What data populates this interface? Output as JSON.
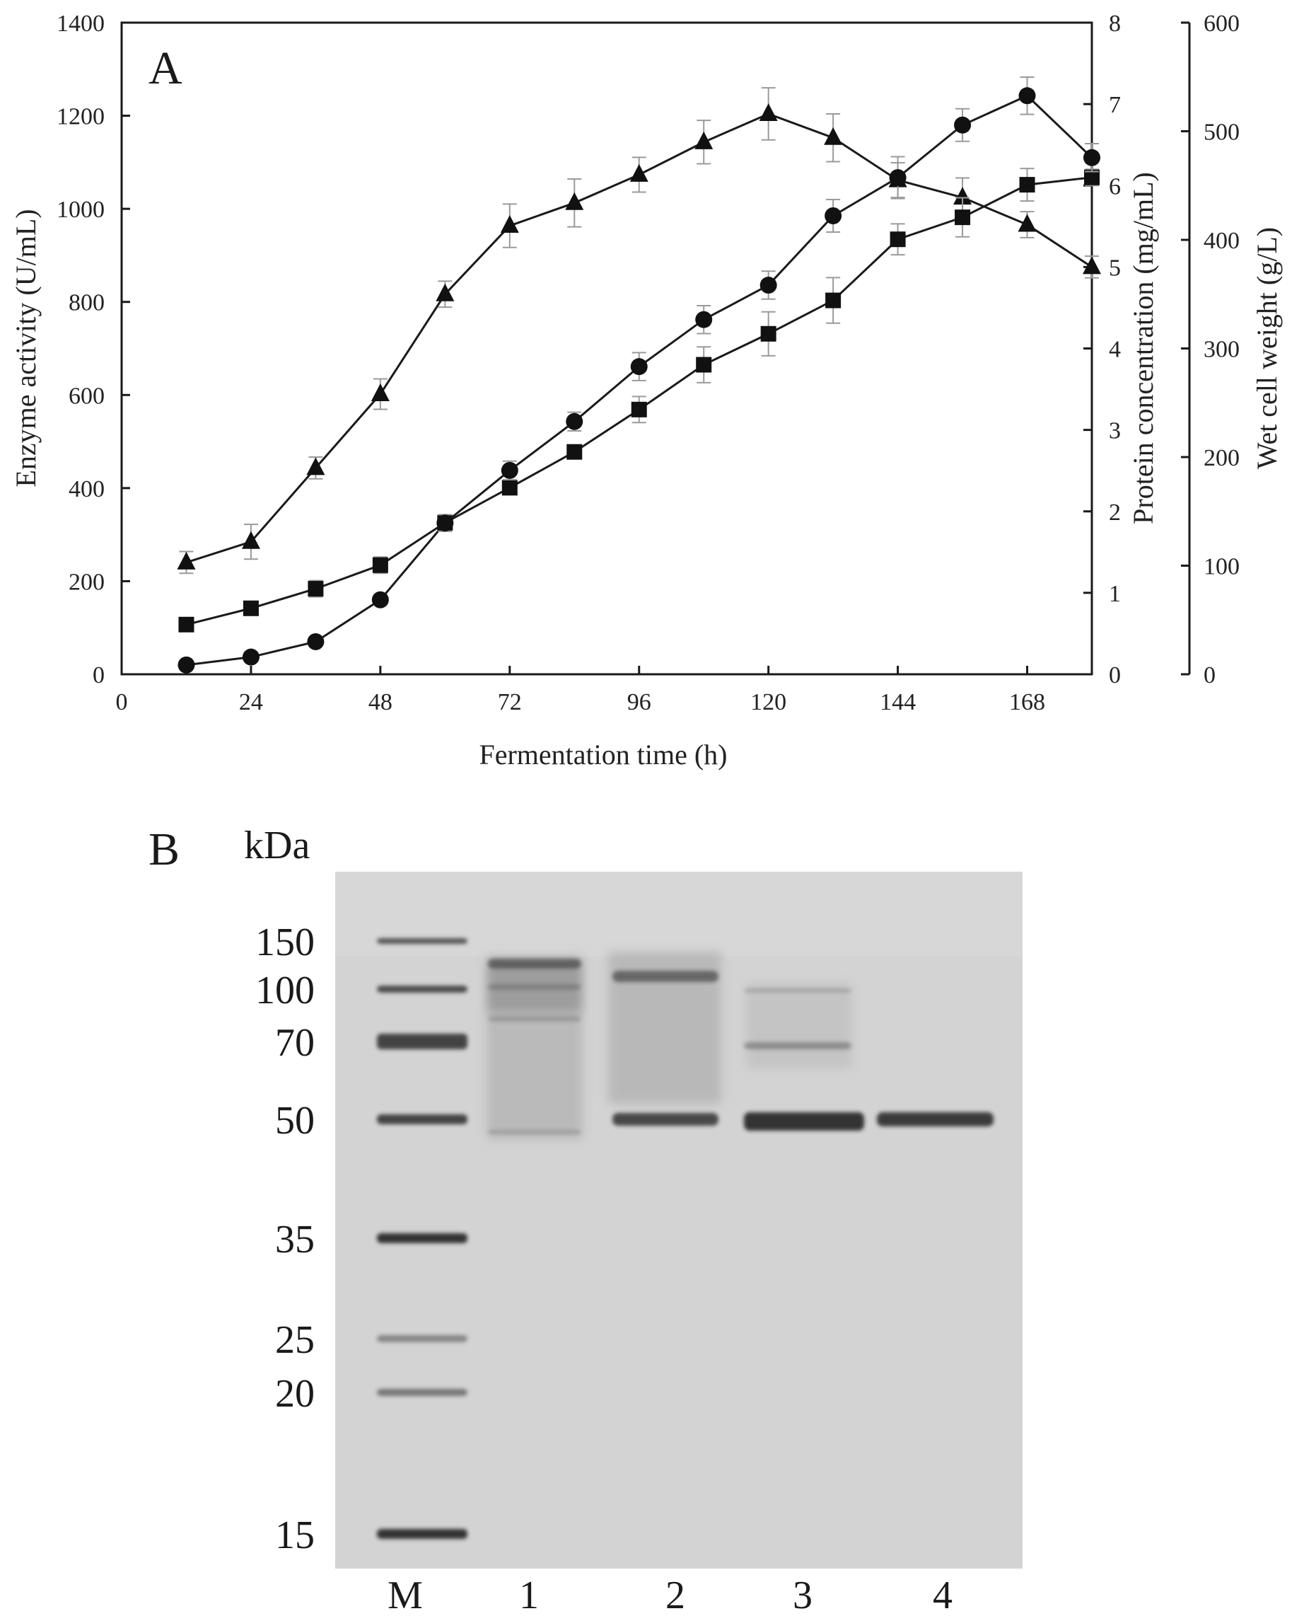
{
  "panel_a_label": "A",
  "panel_b_label": "B",
  "chart_data": [
    {
      "type": "line",
      "title": "",
      "xlabel": "Fermentation time (h)",
      "ylabel": "Enzyme activity (U/mL)",
      "y2label": "Protein concentration (mg/mL)",
      "y3label": "Wet cell weight (g/L)",
      "xlim": [
        0,
        180
      ],
      "ylim": [
        0,
        1400
      ],
      "y2lim": [
        0,
        8
      ],
      "y3lim": [
        0,
        600
      ],
      "xticks": [
        "0",
        "24",
        "48",
        "72",
        "96",
        "120",
        "144",
        "168"
      ],
      "yticks": [
        "0",
        "200",
        "400",
        "600",
        "800",
        "1000",
        "1200",
        "1400"
      ],
      "y2ticks": [
        "0",
        "1",
        "2",
        "3",
        "4",
        "5",
        "6",
        "7",
        "8"
      ],
      "y3ticks": [
        "0",
        "100",
        "200",
        "300",
        "400",
        "500",
        "600"
      ],
      "grid": false,
      "x": [
        12,
        24,
        36,
        48,
        60,
        72,
        84,
        96,
        108,
        120,
        132,
        144,
        156,
        168,
        180
      ],
      "series": [
        {
          "marker": "triangle",
          "axis": "y3",
          "values": [
            103,
            122,
            190,
            258,
            350,
            413,
            434,
            460,
            490,
            516,
            494,
            455,
            439,
            414,
            375
          ],
          "errors": [
            10,
            16,
            10,
            14,
            12,
            20,
            22,
            16,
            20,
            24,
            22,
            16,
            18,
            12,
            10
          ]
        },
        {
          "marker": "square",
          "axis": "y2",
          "values": [
            0.61,
            0.81,
            1.05,
            1.34,
            1.86,
            2.29,
            2.73,
            3.25,
            3.8,
            4.18,
            4.59,
            5.34,
            5.61,
            6.01,
            6.1
          ],
          "errors": [
            0.06,
            0.07,
            0.1,
            0.1,
            0.08,
            0.07,
            0.06,
            0.16,
            0.22,
            0.27,
            0.28,
            0.19,
            0.24,
            0.2,
            0.1
          ]
        },
        {
          "marker": "circle",
          "axis": "y",
          "values": [
            20,
            37,
            70,
            160,
            325,
            438,
            543,
            661,
            762,
            836,
            985,
            1067,
            1180,
            1243,
            1110
          ],
          "errors": [
            6,
            6,
            8,
            10,
            18,
            20,
            20,
            30,
            30,
            30,
            35,
            45,
            35,
            40,
            30
          ]
        }
      ]
    },
    {
      "type": "other",
      "kind": "SDS-PAGE gel",
      "unit_label": "kDa",
      "markers": [
        "150",
        "100",
        "70",
        "50",
        "35",
        "25",
        "20",
        "15"
      ],
      "lanes": [
        "M",
        "1",
        "2",
        "3",
        "4"
      ]
    }
  ]
}
